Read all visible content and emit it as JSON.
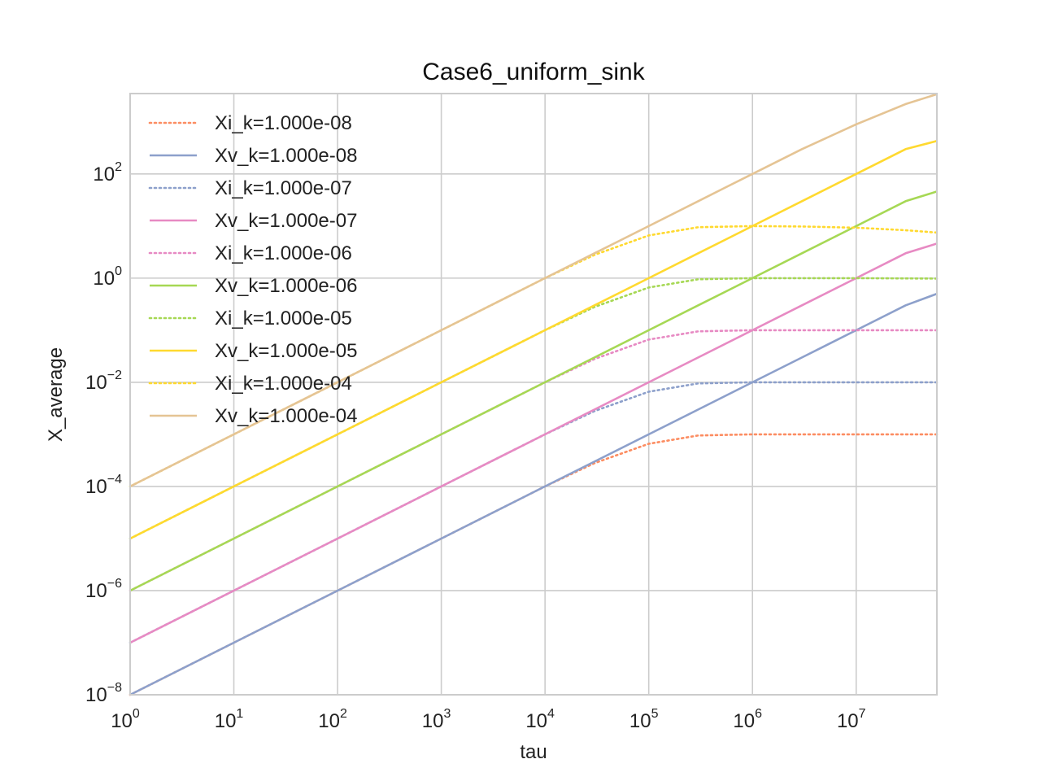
{
  "chart_data": {
    "type": "line",
    "title": "Case6_uniform_sink",
    "xlabel": "tau",
    "ylabel": "X_average",
    "xscale": "log",
    "yscale": "log",
    "xlim": [
      1,
      60000000
    ],
    "ylim": [
      1e-08,
      3500
    ],
    "grid": true,
    "legend_position": "upper-left",
    "xticks": [
      {
        "base": "10",
        "exp": "0",
        "value": 1
      },
      {
        "base": "10",
        "exp": "1",
        "value": 10
      },
      {
        "base": "10",
        "exp": "2",
        "value": 100
      },
      {
        "base": "10",
        "exp": "3",
        "value": 1000
      },
      {
        "base": "10",
        "exp": "4",
        "value": 10000
      },
      {
        "base": "10",
        "exp": "5",
        "value": 100000
      },
      {
        "base": "10",
        "exp": "6",
        "value": 1000000
      },
      {
        "base": "10",
        "exp": "7",
        "value": 10000000
      }
    ],
    "yticks": [
      {
        "base": "10",
        "exp": "−8",
        "value": 1e-08
      },
      {
        "base": "10",
        "exp": "−6",
        "value": 1e-06
      },
      {
        "base": "10",
        "exp": "−4",
        "value": 0.0001
      },
      {
        "base": "10",
        "exp": "−2",
        "value": 0.01
      },
      {
        "base": "10",
        "exp": "0",
        "value": 1
      },
      {
        "base": "10",
        "exp": "2",
        "value": 100
      }
    ],
    "x": [
      1,
      10,
      100,
      1000,
      10000,
      30000,
      100000,
      300000,
      1000000,
      3000000,
      10000000,
      30000000,
      60000000
    ],
    "series": [
      {
        "name": "Xi_k=1.000e-08",
        "style": "dotted",
        "color": "#fc8d62",
        "values": [
          1e-08,
          1e-07,
          1e-06,
          1e-05,
          0.0001,
          0.00028,
          0.00066,
          0.00095,
          0.001,
          0.001,
          0.001,
          0.001,
          0.001
        ]
      },
      {
        "name": "Xv_k=1.000e-08",
        "style": "solid",
        "color": "#8da0cb",
        "values": [
          1e-08,
          1e-07,
          1e-06,
          1e-05,
          0.0001,
          0.0003,
          0.001,
          0.003,
          0.01,
          0.03,
          0.1,
          0.3,
          0.5
        ]
      },
      {
        "name": "Xi_k=1.000e-07",
        "style": "dotted",
        "color": "#8da0cb",
        "values": [
          1e-07,
          1e-06,
          1e-05,
          0.0001,
          0.001,
          0.0028,
          0.0066,
          0.0095,
          0.01,
          0.01,
          0.01,
          0.01,
          0.01
        ]
      },
      {
        "name": "Xv_k=1.000e-07",
        "style": "solid",
        "color": "#e78ac3",
        "values": [
          1e-07,
          1e-06,
          1e-05,
          0.0001,
          0.001,
          0.003,
          0.01,
          0.03,
          0.1,
          0.3,
          1,
          3,
          4.6
        ]
      },
      {
        "name": "Xi_k=1.000e-06",
        "style": "dotted",
        "color": "#e78ac3",
        "values": [
          1e-06,
          1e-05,
          0.0001,
          0.001,
          0.01,
          0.028,
          0.066,
          0.095,
          0.1,
          0.1,
          0.1,
          0.1,
          0.1
        ]
      },
      {
        "name": "Xv_k=1.000e-06",
        "style": "solid",
        "color": "#a6d854",
        "values": [
          1e-06,
          1e-05,
          0.0001,
          0.001,
          0.01,
          0.03,
          0.1,
          0.3,
          1,
          3,
          10,
          30,
          46
        ]
      },
      {
        "name": "Xi_k=1.000e-05",
        "style": "dotted",
        "color": "#a6d854",
        "values": [
          1e-05,
          0.0001,
          0.001,
          0.01,
          0.1,
          0.28,
          0.66,
          0.95,
          1,
          1,
          1,
          0.99,
          0.98
        ]
      },
      {
        "name": "Xv_k=1.000e-05",
        "style": "solid",
        "color": "#ffd92f",
        "values": [
          1e-05,
          0.0001,
          0.001,
          0.01,
          0.1,
          0.3,
          1,
          3,
          10,
          30,
          100,
          300,
          430
        ]
      },
      {
        "name": "Xi_k=1.000e-04",
        "style": "dotted",
        "color": "#ffd92f",
        "values": [
          0.0001,
          0.001,
          0.01,
          0.1,
          1,
          2.8,
          6.6,
          9.5,
          10,
          9.8,
          9.3,
          8.3,
          7.5
        ]
      },
      {
        "name": "Xv_k=1.000e-04",
        "style": "solid",
        "color": "#e5c494",
        "values": [
          0.0001,
          0.001,
          0.01,
          0.1,
          1,
          3,
          10,
          30,
          100,
          300,
          900,
          2200,
          3400
        ]
      }
    ]
  }
}
